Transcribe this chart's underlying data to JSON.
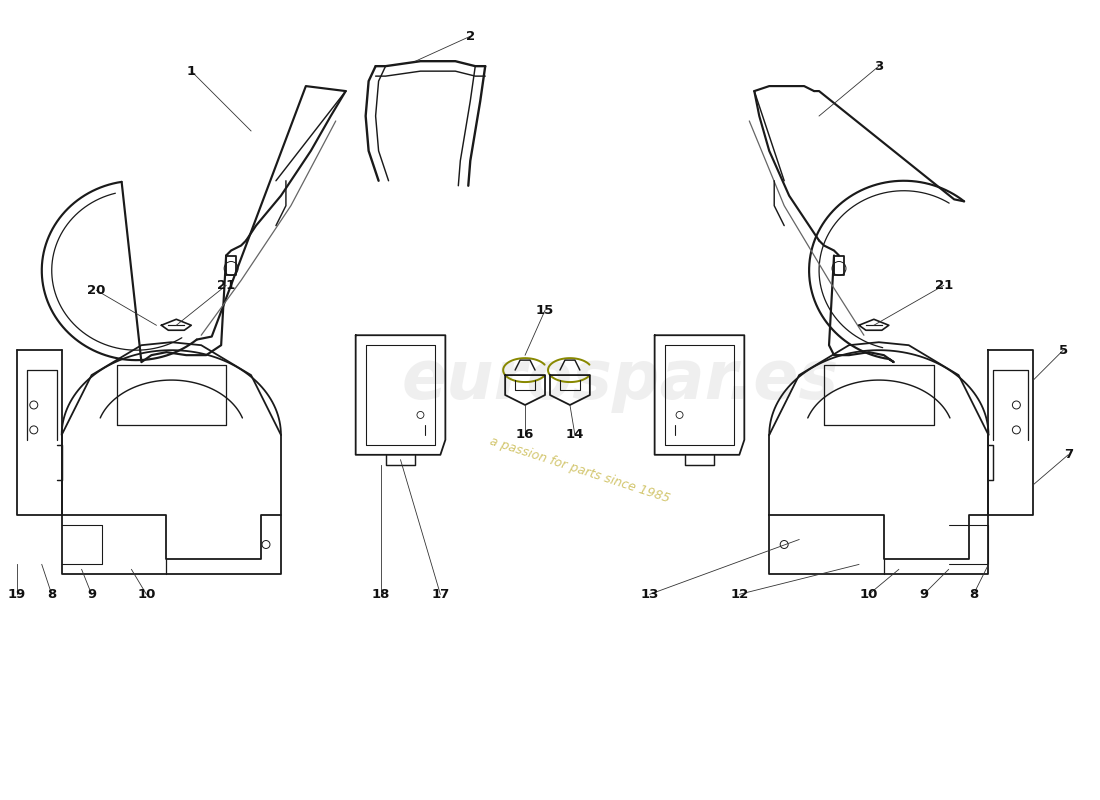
{
  "background_color": "#ffffff",
  "line_color": "#1a1a1a",
  "watermark_color": "#d8d8d8",
  "watermark_text": "eurospar.es",
  "watermark_slogan": "a passion for parts since 1985",
  "annotation_color": "#222222",
  "lw": 1.3
}
